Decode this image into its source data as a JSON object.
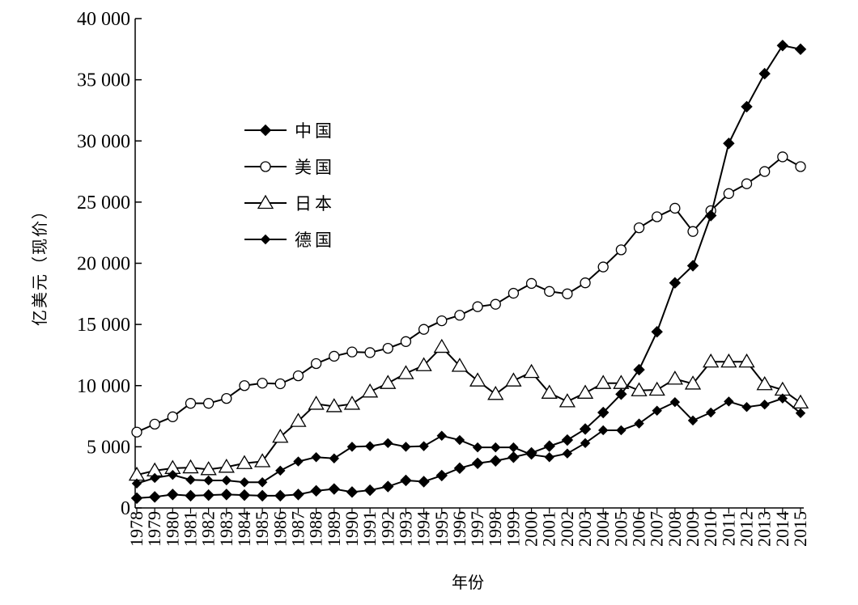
{
  "chart_data": {
    "type": "line",
    "title": "",
    "xlabel": "年份",
    "ylabel": "亿美元（现价）",
    "ylim": [
      0,
      40000
    ],
    "yticks": [
      0,
      5000,
      10000,
      15000,
      20000,
      25000,
      30000,
      35000,
      40000
    ],
    "ytick_labels": [
      "0",
      "5 000",
      "10 000",
      "15 000",
      "20 000",
      "25 000",
      "30 000",
      "35 000",
      "40 000"
    ],
    "x": [
      1978,
      1979,
      1980,
      1981,
      1982,
      1983,
      1984,
      1985,
      1986,
      1987,
      1988,
      1989,
      1990,
      1991,
      1992,
      1993,
      1994,
      1995,
      1996,
      1997,
      1998,
      1999,
      2000,
      2001,
      2002,
      2003,
      2004,
      2005,
      2006,
      2007,
      2008,
      2009,
      2010,
      2011,
      2012,
      2013,
      2014,
      2015
    ],
    "xtick_labels": [
      "1978",
      "1979",
      "1980",
      "1981",
      "1982",
      "1983",
      "1984",
      "1985",
      "1986",
      "1987",
      "1988",
      "1989",
      "1990",
      "1991",
      "1992",
      "1993",
      "1994",
      "1995",
      "1996",
      "1997",
      "1998",
      "1999",
      "2000",
      "2001",
      "2002",
      "2003",
      "2004",
      "2005",
      "2006",
      "2007",
      "2008",
      "2009",
      "2010",
      "2011",
      "2012",
      "2013",
      "2014",
      "2015"
    ],
    "grid": false,
    "legend_position": "upper-left",
    "series": [
      {
        "name": "中国",
        "marker": "filled-diamond",
        "values": [
          800,
          900,
          1100,
          1000,
          1050,
          1100,
          1050,
          1000,
          1000,
          1100,
          1400,
          1550,
          1300,
          1450,
          1750,
          2250,
          2150,
          2650,
          3250,
          3650,
          3850,
          4150,
          4500,
          5050,
          5550,
          6450,
          7800,
          9300,
          11300,
          14400,
          18400,
          19800,
          23900,
          29800,
          32800,
          35500,
          37800,
          37500
        ]
      },
      {
        "name": "美国",
        "marker": "open-circle",
        "values": [
          6200,
          6850,
          7450,
          8550,
          8550,
          8950,
          10000,
          10200,
          10150,
          10800,
          11800,
          12400,
          12750,
          12700,
          13050,
          13600,
          14600,
          15300,
          15750,
          16450,
          16650,
          17550,
          18350,
          17700,
          17500,
          18400,
          19700,
          21100,
          22900,
          23800,
          24500,
          22600,
          24300,
          25700,
          26500,
          27500,
          28700,
          27900
        ]
      },
      {
        "name": "日本",
        "marker": "open-triangle",
        "values": [
          2700,
          3050,
          3250,
          3300,
          3150,
          3350,
          3650,
          3800,
          5800,
          7100,
          8500,
          8300,
          8500,
          9500,
          10200,
          11000,
          11650,
          13150,
          11600,
          10400,
          9300,
          10400,
          11100,
          9400,
          8700,
          9400,
          10200,
          10200,
          9600,
          9650,
          10550,
          10150,
          11950,
          11950,
          11950,
          10100,
          9650,
          8600
        ]
      },
      {
        "name": "德国",
        "marker": "small-diamond",
        "values": [
          2000,
          2450,
          2700,
          2300,
          2250,
          2250,
          2100,
          2100,
          3050,
          3800,
          4150,
          4050,
          5000,
          5050,
          5300,
          5000,
          5050,
          5900,
          5550,
          4950,
          4950,
          4950,
          4350,
          4150,
          4450,
          5300,
          6350,
          6350,
          6900,
          7950,
          8650,
          7150,
          7800,
          8700,
          8250,
          8450,
          8950,
          7750
        ]
      }
    ]
  }
}
